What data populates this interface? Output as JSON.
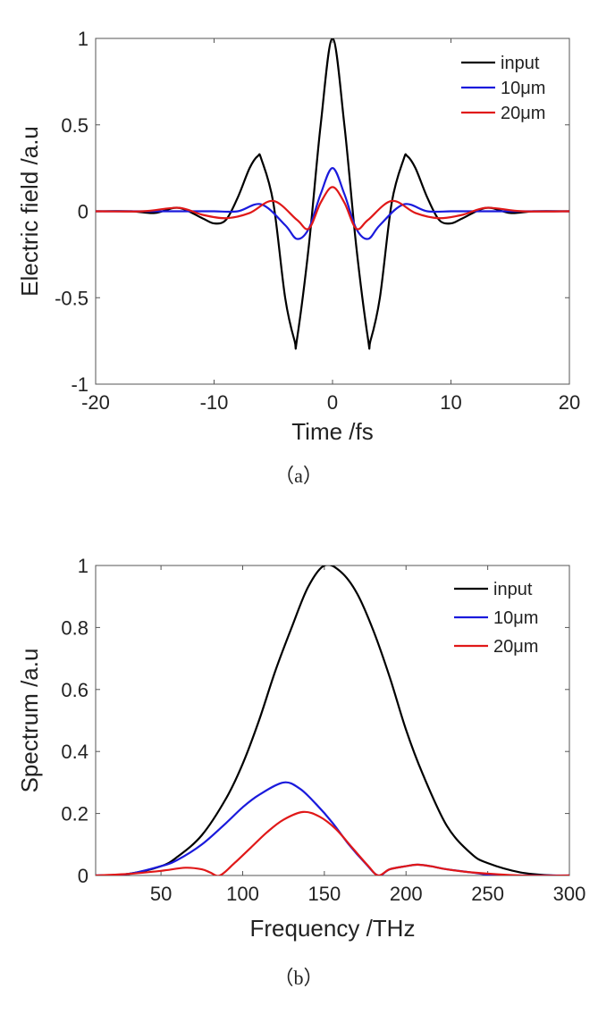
{
  "chart_data": [
    {
      "id": "a",
      "type": "line",
      "caption": "（a）",
      "xlabel": "Time /fs",
      "ylabel": "Electric field /a.u",
      "xlim": [
        -20,
        20
      ],
      "ylim": [
        -1,
        1
      ],
      "xticks": [
        -20,
        -10,
        0,
        10,
        20
      ],
      "yticks": [
        -1,
        -0.5,
        0,
        0.5,
        1
      ],
      "xtick_labels": [
        "-20",
        "-10",
        "0",
        "10",
        "20"
      ],
      "ytick_labels": [
        "-1",
        "-0.5",
        "0",
        "0.5",
        "1"
      ],
      "legend_position": "top-right",
      "series": [
        {
          "name": "input",
          "color": "#000000",
          "x": [
            -20,
            -17,
            -15,
            -13,
            -11,
            -10,
            -9,
            -8,
            -7,
            -6.3,
            -6,
            -5,
            -4,
            -3.2,
            -3,
            -2,
            -1,
            0,
            1,
            2,
            3,
            3.2,
            4,
            5,
            6,
            6.3,
            7,
            8,
            9,
            10,
            11,
            13,
            15,
            17,
            20
          ],
          "y": [
            0,
            0,
            -0.01,
            0.02,
            -0.04,
            -0.07,
            -0.05,
            0.08,
            0.25,
            0.32,
            0.3,
            0.05,
            -0.5,
            -0.75,
            -0.74,
            -0.2,
            0.5,
            1,
            0.5,
            -0.2,
            -0.74,
            -0.75,
            -0.5,
            0.05,
            0.3,
            0.32,
            0.25,
            0.08,
            -0.05,
            -0.07,
            -0.04,
            0.02,
            -0.01,
            0,
            0
          ]
        },
        {
          "name": "10μm",
          "color": "#1a1adc",
          "x": [
            -20,
            -15,
            -12,
            -10,
            -8,
            -6,
            -4,
            -3,
            -2,
            -1,
            0,
            1,
            2,
            3,
            4,
            6,
            8,
            10,
            12,
            15,
            20
          ],
          "y": [
            0,
            0,
            0,
            0,
            0,
            0.04,
            -0.08,
            -0.16,
            -0.1,
            0.1,
            0.25,
            0.1,
            -0.1,
            -0.16,
            -0.08,
            0.04,
            0,
            0,
            0,
            0,
            0
          ],
          "clip_x": [
            -10,
            10
          ]
        },
        {
          "name": "20μm",
          "color": "#e01818",
          "x": [
            -20,
            -16,
            -13,
            -11,
            -9,
            -7,
            -5,
            -3,
            -2,
            -1,
            0,
            1,
            2,
            3,
            5,
            7,
            9,
            11,
            13,
            16,
            20
          ],
          "y": [
            0,
            0,
            0.02,
            -0.02,
            -0.04,
            -0.01,
            0.06,
            -0.05,
            -0.1,
            0.05,
            0.14,
            0.05,
            -0.1,
            -0.05,
            0.06,
            -0.01,
            -0.04,
            -0.02,
            0.02,
            0,
            0
          ]
        }
      ]
    },
    {
      "id": "b",
      "type": "line",
      "caption": "（b）",
      "xlabel": "Frequency /THz",
      "ylabel": "Spectrum /a.u",
      "xlim": [
        10,
        300
      ],
      "ylim": [
        0,
        1
      ],
      "xticks": [
        50,
        100,
        150,
        200,
        250,
        300
      ],
      "yticks": [
        0,
        0.2,
        0.4,
        0.6,
        0.8,
        1
      ],
      "xtick_labels": [
        "50",
        "100",
        "150",
        "200",
        "250",
        "300"
      ],
      "ytick_labels": [
        "0",
        "0.2",
        "0.4",
        "0.6",
        "0.8",
        "1"
      ],
      "legend_position": "top-right",
      "series": [
        {
          "name": "input",
          "color": "#000000",
          "x": [
            10,
            30,
            50,
            60,
            75,
            90,
            100,
            110,
            120,
            130,
            140,
            150,
            160,
            170,
            180,
            190,
            200,
            210,
            225,
            240,
            250,
            270,
            290,
            300
          ],
          "y": [
            0,
            0.005,
            0.03,
            0.06,
            0.13,
            0.25,
            0.36,
            0.5,
            0.66,
            0.8,
            0.93,
            1,
            0.98,
            0.91,
            0.79,
            0.64,
            0.47,
            0.33,
            0.16,
            0.07,
            0.04,
            0.01,
            0,
            0
          ]
        },
        {
          "name": "10μm",
          "color": "#1a1adc",
          "x": [
            10,
            30,
            50,
            60,
            75,
            90,
            100,
            110,
            125,
            135,
            145,
            155,
            165,
            175,
            183,
            190,
            200,
            207,
            215,
            225,
            240,
            255,
            270,
            300
          ],
          "y": [
            0,
            0.005,
            0.03,
            0.05,
            0.1,
            0.17,
            0.22,
            0.26,
            0.3,
            0.28,
            0.23,
            0.17,
            0.1,
            0.04,
            0,
            0.02,
            0.03,
            0.035,
            0.03,
            0.02,
            0.01,
            0,
            0,
            0
          ]
        },
        {
          "name": "20μm",
          "color": "#e01818",
          "x": [
            10,
            30,
            50,
            65,
            75,
            80,
            86,
            95,
            105,
            115,
            125,
            137,
            147,
            157,
            167,
            177,
            183,
            190,
            200,
            207,
            215,
            225,
            240,
            270,
            300
          ],
          "y": [
            0,
            0.005,
            0.015,
            0.025,
            0.02,
            0.01,
            0,
            0.04,
            0.09,
            0.14,
            0.18,
            0.205,
            0.19,
            0.15,
            0.09,
            0.03,
            0,
            0.02,
            0.03,
            0.035,
            0.03,
            0.02,
            0.01,
            0,
            0
          ]
        }
      ]
    }
  ]
}
